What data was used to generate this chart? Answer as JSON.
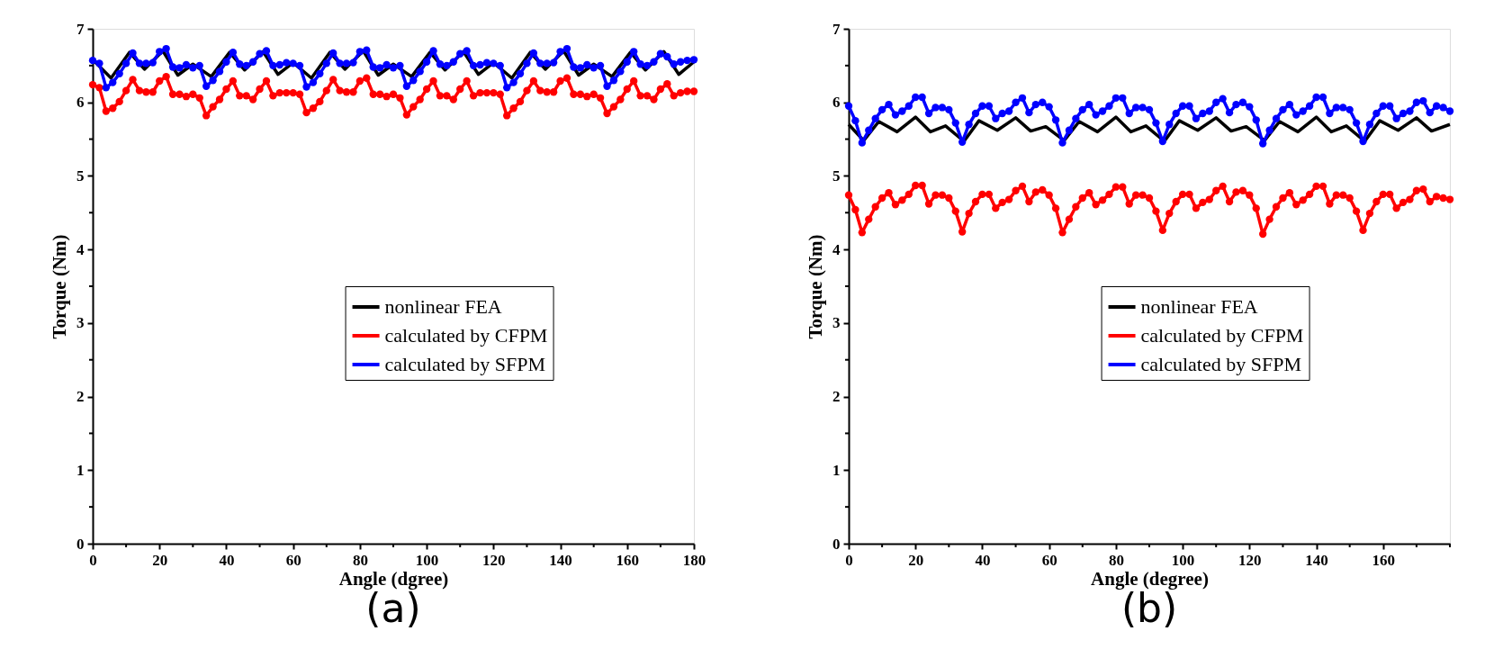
{
  "chart_data": [
    {
      "type": "line",
      "xlabel": "Angle (dgree)",
      "ylabel": "Torque (Nm)",
      "annotations": [
        "(a)"
      ],
      "legend": "right",
      "grid": false,
      "xlim": [
        0,
        180
      ],
      "ylim": [
        0,
        7
      ],
      "xticks": [
        0,
        {
          "value": 10,
          "label": null
        },
        20,
        {
          "value": 30,
          "label": null
        },
        40,
        {
          "value": 50,
          "label": null
        },
        60,
        {
          "value": 70,
          "label": null
        },
        80,
        {
          "value": 90,
          "label": null
        },
        100,
        {
          "value": 110,
          "label": null
        },
        120,
        {
          "value": 130,
          "label": null
        },
        140,
        {
          "value": 150,
          "label": null
        },
        160,
        {
          "value": 170,
          "label": null
        },
        180
      ],
      "yticks": [
        0,
        {
          "value": 0.5,
          "label": null
        },
        1,
        {
          "value": 1.5,
          "label": null
        },
        2,
        {
          "value": 2.5,
          "label": null
        },
        3,
        {
          "value": 3.5,
          "label": null
        },
        4,
        {
          "value": 4.5,
          "label": null
        },
        5,
        {
          "value": 5.5,
          "label": null
        },
        6,
        {
          "value": 6.5,
          "label": null
        },
        7
      ],
      "x": [
        0,
        2,
        4,
        6,
        8,
        10,
        12,
        14,
        16,
        18,
        20,
        22,
        24,
        26,
        28,
        30,
        32,
        34,
        36,
        38,
        40,
        42,
        44,
        46,
        48,
        50,
        52,
        54,
        56,
        58,
        60,
        62,
        64,
        66,
        68,
        70,
        72,
        74,
        76,
        78,
        80,
        82,
        84,
        86,
        88,
        90,
        92,
        94,
        96,
        98,
        100,
        102,
        104,
        106,
        108,
        110,
        112,
        114,
        116,
        118,
        120,
        122,
        124,
        126,
        128,
        130,
        132,
        134,
        136,
        138,
        140,
        142,
        144,
        146,
        148,
        150,
        152,
        154,
        156,
        158,
        160,
        162,
        164,
        166,
        168,
        170,
        172,
        174,
        176,
        178,
        180
      ],
      "series": [
        {
          "name": "nonlinear FEA",
          "color": "#000000",
          "marker": "none",
          "x": [
            0,
            5.5,
            11,
            15.5,
            21,
            25.5,
            30,
            35.5,
            41,
            45.5,
            51,
            55.5,
            60,
            65.5,
            71,
            75.5,
            81,
            85.5,
            90,
            95.5,
            101,
            105.5,
            111,
            115.5,
            120,
            125.5,
            131,
            135.5,
            141,
            145.5,
            150,
            155.5,
            161,
            165.5,
            171,
            175.5,
            180
          ],
          "values": [
            6.58,
            6.33,
            6.68,
            6.45,
            6.7,
            6.37,
            6.52,
            6.35,
            6.68,
            6.44,
            6.69,
            6.38,
            6.54,
            6.33,
            6.68,
            6.45,
            6.7,
            6.37,
            6.52,
            6.35,
            6.68,
            6.44,
            6.69,
            6.38,
            6.54,
            6.33,
            6.68,
            6.45,
            6.7,
            6.37,
            6.52,
            6.35,
            6.68,
            6.44,
            6.69,
            6.38,
            6.55
          ]
        },
        {
          "name": "calculated by CFPM",
          "color": "#ff0000",
          "marker": "circle",
          "values": [
            6.24,
            6.2,
            5.88,
            5.92,
            6.01,
            6.16,
            6.31,
            6.16,
            6.14,
            6.14,
            6.29,
            6.35,
            6.11,
            6.11,
            6.08,
            6.11,
            6.06,
            5.82,
            5.94,
            6.04,
            6.18,
            6.29,
            6.09,
            6.09,
            6.04,
            6.18,
            6.29,
            6.09,
            6.13,
            6.13,
            6.13,
            6.11,
            5.86,
            5.92,
            6.01,
            6.16,
            6.31,
            6.16,
            6.14,
            6.14,
            6.29,
            6.33,
            6.11,
            6.11,
            6.08,
            6.11,
            6.06,
            5.83,
            5.94,
            6.04,
            6.18,
            6.29,
            6.09,
            6.09,
            6.04,
            6.18,
            6.29,
            6.09,
            6.13,
            6.13,
            6.13,
            6.11,
            5.82,
            5.92,
            6.01,
            6.16,
            6.29,
            6.16,
            6.14,
            6.14,
            6.29,
            6.33,
            6.11,
            6.11,
            6.08,
            6.11,
            6.06,
            5.85,
            5.94,
            6.04,
            6.18,
            6.29,
            6.09,
            6.09,
            6.04,
            6.18,
            6.25,
            6.09,
            6.13,
            6.15,
            6.15
          ]
        },
        {
          "name": "calculated by SFPM",
          "color": "#0000ff",
          "marker": "circle",
          "values": [
            6.57,
            6.53,
            6.2,
            6.27,
            6.39,
            6.53,
            6.67,
            6.53,
            6.53,
            6.54,
            6.69,
            6.73,
            6.48,
            6.47,
            6.51,
            6.47,
            6.5,
            6.22,
            6.3,
            6.42,
            6.55,
            6.68,
            6.52,
            6.5,
            6.55,
            6.66,
            6.7,
            6.5,
            6.51,
            6.54,
            6.53,
            6.5,
            6.21,
            6.27,
            6.39,
            6.53,
            6.67,
            6.53,
            6.53,
            6.54,
            6.69,
            6.71,
            6.48,
            6.47,
            6.51,
            6.47,
            6.5,
            6.22,
            6.3,
            6.42,
            6.55,
            6.7,
            6.52,
            6.5,
            6.55,
            6.66,
            6.7,
            6.5,
            6.51,
            6.54,
            6.53,
            6.5,
            6.2,
            6.27,
            6.39,
            6.53,
            6.67,
            6.53,
            6.53,
            6.54,
            6.69,
            6.73,
            6.48,
            6.47,
            6.51,
            6.47,
            6.5,
            6.22,
            6.3,
            6.42,
            6.55,
            6.69,
            6.52,
            6.5,
            6.55,
            6.66,
            6.62,
            6.52,
            6.55,
            6.57,
            6.58
          ]
        }
      ]
    },
    {
      "type": "line",
      "xlabel": "Angle (degree)",
      "ylabel": "Torque (Nm)",
      "annotations": [
        "(b)"
      ],
      "legend": "right",
      "grid": false,
      "xlim": [
        0,
        180
      ],
      "ylim": [
        0,
        7
      ],
      "xticks": [
        0,
        {
          "value": 10,
          "label": null
        },
        20,
        {
          "value": 30,
          "label": null
        },
        40,
        {
          "value": 50,
          "label": null
        },
        60,
        {
          "value": 70,
          "label": null
        },
        80,
        {
          "value": 90,
          "label": null
        },
        100,
        {
          "value": 110,
          "label": null
        },
        120,
        {
          "value": 130,
          "label": null
        },
        140,
        {
          "value": 150,
          "label": null
        },
        160,
        {
          "value": 170,
          "label": null
        },
        {
          "value": 180,
          "label": null
        }
      ],
      "yticks": [
        0,
        {
          "value": 0.5,
          "label": null
        },
        1,
        {
          "value": 1.5,
          "label": null
        },
        2,
        {
          "value": 2.5,
          "label": null
        },
        3,
        {
          "value": 3.5,
          "label": null
        },
        4,
        {
          "value": 4.5,
          "label": null
        },
        5,
        {
          "value": 5.5,
          "label": null
        },
        6,
        {
          "value": 6.5,
          "label": null
        },
        7
      ],
      "x": [
        0,
        2,
        4,
        6,
        8,
        10,
        12,
        14,
        16,
        18,
        20,
        22,
        24,
        26,
        28,
        30,
        32,
        34,
        36,
        38,
        40,
        42,
        44,
        46,
        48,
        50,
        52,
        54,
        56,
        58,
        60,
        62,
        64,
        66,
        68,
        70,
        72,
        74,
        76,
        78,
        80,
        82,
        84,
        86,
        88,
        90,
        92,
        94,
        96,
        98,
        100,
        102,
        104,
        106,
        108,
        110,
        112,
        114,
        116,
        118,
        120,
        122,
        124,
        126,
        128,
        130,
        132,
        134,
        136,
        138,
        140,
        142,
        144,
        146,
        148,
        150,
        152,
        154,
        156,
        158,
        160,
        162,
        164,
        166,
        168,
        170,
        172,
        174,
        176,
        178,
        180
      ],
      "series": [
        {
          "name": "nonlinear FEA",
          "color": "#000000",
          "marker": "none",
          "x": [
            0,
            4.5,
            9,
            14.5,
            20,
            24.5,
            29,
            34.5,
            39,
            44.5,
            50,
            54.5,
            59,
            64.5,
            69,
            74.5,
            80,
            84.5,
            89,
            94.5,
            99,
            104.5,
            110,
            114.5,
            119,
            124.5,
            129,
            134.5,
            140,
            144.5,
            149,
            154.5,
            159,
            164.5,
            170,
            174.5,
            180
          ],
          "values": [
            5.7,
            5.48,
            5.74,
            5.6,
            5.8,
            5.6,
            5.68,
            5.47,
            5.75,
            5.62,
            5.79,
            5.61,
            5.67,
            5.48,
            5.74,
            5.6,
            5.8,
            5.6,
            5.68,
            5.47,
            5.75,
            5.62,
            5.79,
            5.61,
            5.67,
            5.48,
            5.74,
            5.6,
            5.8,
            5.6,
            5.68,
            5.47,
            5.75,
            5.62,
            5.79,
            5.61,
            5.7
          ]
        },
        {
          "name": "calculated by CFPM",
          "color": "#ff0000",
          "marker": "circle",
          "values": [
            4.74,
            4.54,
            4.23,
            4.41,
            4.58,
            4.7,
            4.77,
            4.61,
            4.67,
            4.75,
            4.87,
            4.87,
            4.62,
            4.74,
            4.74,
            4.7,
            4.52,
            4.24,
            4.49,
            4.65,
            4.75,
            4.75,
            4.56,
            4.64,
            4.68,
            4.8,
            4.86,
            4.65,
            4.78,
            4.81,
            4.74,
            4.56,
            4.23,
            4.41,
            4.58,
            4.7,
            4.77,
            4.61,
            4.67,
            4.75,
            4.85,
            4.85,
            4.62,
            4.74,
            4.74,
            4.7,
            4.52,
            4.26,
            4.49,
            4.65,
            4.75,
            4.75,
            4.56,
            4.64,
            4.68,
            4.8,
            4.86,
            4.65,
            4.78,
            4.8,
            4.74,
            4.56,
            4.21,
            4.41,
            4.58,
            4.7,
            4.77,
            4.61,
            4.67,
            4.75,
            4.86,
            4.86,
            4.62,
            4.74,
            4.74,
            4.7,
            4.52,
            4.26,
            4.49,
            4.65,
            4.75,
            4.75,
            4.56,
            4.64,
            4.68,
            4.8,
            4.82,
            4.65,
            4.72,
            4.7,
            4.68
          ]
        },
        {
          "name": "calculated by SFPM",
          "color": "#0000ff",
          "marker": "circle",
          "values": [
            5.95,
            5.75,
            5.45,
            5.62,
            5.78,
            5.9,
            5.97,
            5.83,
            5.88,
            5.95,
            6.07,
            6.07,
            5.85,
            5.93,
            5.93,
            5.9,
            5.72,
            5.46,
            5.7,
            5.85,
            5.95,
            5.95,
            5.78,
            5.85,
            5.88,
            6.0,
            6.06,
            5.86,
            5.97,
            6.0,
            5.94,
            5.76,
            5.45,
            5.62,
            5.78,
            5.9,
            5.97,
            5.83,
            5.88,
            5.95,
            6.06,
            6.06,
            5.85,
            5.93,
            5.93,
            5.9,
            5.72,
            5.47,
            5.7,
            5.85,
            5.95,
            5.95,
            5.78,
            5.85,
            5.88,
            6.0,
            6.05,
            5.86,
            5.97,
            6.0,
            5.94,
            5.76,
            5.44,
            5.62,
            5.78,
            5.9,
            5.97,
            5.83,
            5.88,
            5.95,
            6.07,
            6.07,
            5.85,
            5.93,
            5.93,
            5.9,
            5.72,
            5.47,
            5.7,
            5.85,
            5.95,
            5.95,
            5.78,
            5.85,
            5.88,
            6.0,
            6.02,
            5.86,
            5.95,
            5.93,
            5.88
          ]
        }
      ]
    }
  ]
}
